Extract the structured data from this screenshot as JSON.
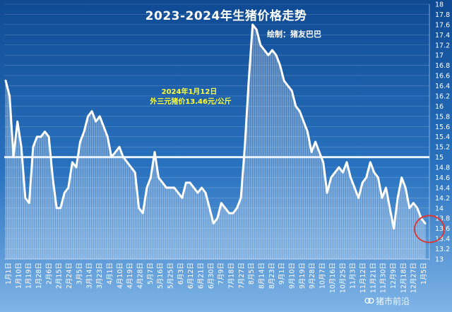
{
  "chart_data": {
    "type": "area",
    "title": "2023-2024年生猪价格走势",
    "subtitle": "绘制：猪友巴巴",
    "annotations": [
      "2024年1月12日",
      "外三元猪价13.46元/公斤"
    ],
    "watermark": "猪市前沿",
    "ylim": [
      13,
      18
    ],
    "yticks": [
      13,
      13.2,
      13.4,
      13.6,
      13.8,
      14,
      14.2,
      14.4,
      14.6,
      14.8,
      15,
      15.2,
      15.4,
      15.6,
      15.8,
      16,
      16.2,
      16.4,
      16.6,
      16.8,
      17,
      17.2,
      17.4,
      17.6,
      17.8,
      18
    ],
    "ytick_labels": [
      "13",
      "13.2",
      "13.4",
      "13.6",
      "13.8",
      "14",
      "14.2",
      "14.4",
      "14.6",
      "14.8",
      "15",
      "15.2",
      "15.4",
      "15.6",
      "15.8",
      "16",
      "16.2",
      "16.4",
      "16.6",
      "16.8",
      "17",
      "17.2",
      "17.4",
      "17.6",
      "17.8",
      "18"
    ],
    "reference_line": 15,
    "grid": true,
    "xtick_labels": [
      "1月1日",
      "1月10日",
      "1月19日",
      "1月28日",
      "2月6日",
      "2月15日",
      "2月24日",
      "3月5日",
      "3月14日",
      "3月23日",
      "4月1日",
      "4月10日",
      "4月19日",
      "4月28日",
      "5月7日",
      "5月16日",
      "5月25日",
      "6月3日",
      "6月12日",
      "6月21日",
      "6月30日",
      "7月9日",
      "7月18日",
      "7月27日",
      "8月5日",
      "8月14日",
      "8月23日",
      "9月1日",
      "9月10日",
      "9月19日",
      "9月28日",
      "10月7日",
      "10月16日",
      "10月25日",
      "11月3日",
      "11月12日",
      "11月21日",
      "11月30日",
      "12月9日",
      "12月18日",
      "12月27日",
      "1月5日"
    ],
    "series": [
      {
        "values": [
          16.5,
          16.2,
          15.0,
          15.7,
          15.2,
          14.2,
          14.1,
          15.2,
          15.4,
          15.4,
          15.5,
          15.4,
          14.6,
          14.0,
          14.0,
          14.3,
          14.4,
          14.9,
          14.8,
          15.3,
          15.5,
          15.8,
          15.9,
          15.7,
          15.8,
          15.6,
          15.4,
          15.0,
          15.1,
          15.2,
          15.0,
          14.9,
          14.8,
          14.7,
          14.0,
          13.9,
          14.4,
          14.6,
          15.1,
          14.6,
          14.5,
          14.4,
          14.4,
          14.4,
          14.3,
          14.2,
          14.5,
          14.5,
          14.4,
          14.3,
          14.4,
          14.3,
          14.0,
          13.7,
          13.8,
          14.1,
          14.0,
          13.9,
          13.9,
          14.0,
          14.2,
          15.2,
          16.5,
          17.6,
          17.5,
          17.2,
          17.1,
          17.0,
          17.1,
          17.0,
          16.8,
          16.5,
          16.4,
          16.3,
          16.0,
          15.9,
          15.7,
          15.5,
          15.1,
          15.3,
          15.1,
          14.9,
          14.3,
          14.6,
          14.7,
          14.8,
          14.7,
          14.9,
          14.6,
          14.4,
          14.2,
          14.5,
          14.6,
          14.9,
          14.7,
          14.6,
          14.2,
          14.4,
          14.0,
          13.6,
          14.2,
          14.6,
          14.4,
          14.0,
          14.1,
          14.0,
          13.8,
          13.7
        ]
      }
    ]
  }
}
